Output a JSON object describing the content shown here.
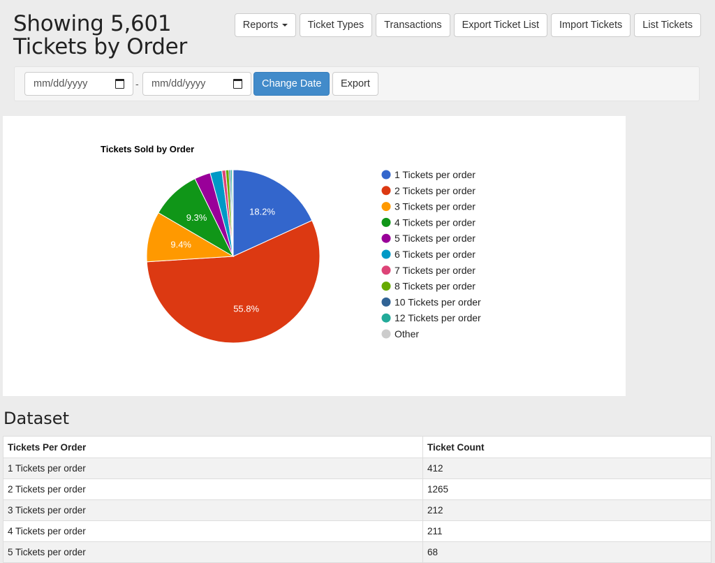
{
  "header": {
    "title": "Showing 5,601 Tickets by Order",
    "buttons": [
      "Reports",
      "Ticket Types",
      "Transactions",
      "Export Ticket List",
      "Import Tickets",
      "List Tickets"
    ]
  },
  "filters": {
    "start_date_placeholder": "mm/dd/yyyy",
    "end_date_placeholder": "mm/dd/yyyy",
    "separator": "-",
    "change_date_label": "Change Date",
    "export_label": "Export"
  },
  "chart_data": {
    "type": "pie",
    "title": "Tickets Sold by Order",
    "categories": [
      "1 Tickets per order",
      "2 Tickets per order",
      "3 Tickets per order",
      "4 Tickets per order",
      "5 Tickets per order",
      "6 Tickets per order",
      "7 Tickets per order",
      "8 Tickets per order",
      "10 Tickets per order",
      "12 Tickets per order",
      "Other"
    ],
    "values": [
      18.2,
      55.8,
      9.4,
      9.3,
      3.0,
      2.2,
      0.7,
      0.6,
      0.3,
      0.3,
      0.2
    ],
    "slice_labels": [
      "18.2%",
      "55.8%",
      "9.4%",
      "9.3%",
      "",
      "",
      "",
      "",
      "",
      "",
      ""
    ],
    "colors": [
      "#3366cc",
      "#dc3912",
      "#ff9900",
      "#109618",
      "#990099",
      "#0099c6",
      "#dd4477",
      "#66aa00",
      "#316395",
      "#22aa99",
      "#cccccc"
    ],
    "legend": "right"
  },
  "dataset": {
    "title": "Dataset",
    "columns": [
      "Tickets Per Order",
      "Ticket Count"
    ],
    "rows": [
      [
        "1 Tickets per order",
        "412"
      ],
      [
        "2 Tickets per order",
        "1265"
      ],
      [
        "3 Tickets per order",
        "212"
      ],
      [
        "4 Tickets per order",
        "211"
      ],
      [
        "5 Tickets per order",
        "68"
      ]
    ]
  }
}
